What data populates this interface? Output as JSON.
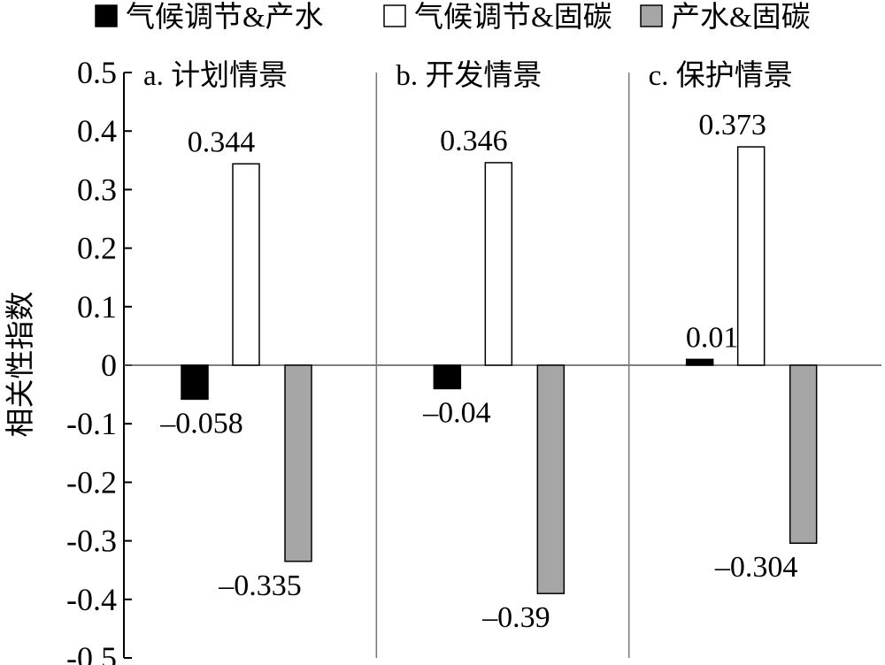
{
  "chart_data": {
    "type": "bar",
    "title": "",
    "xlabel": "",
    "ylabel": "相关性指数",
    "ylim": [
      -0.5,
      0.5
    ],
    "yticks": [
      "0.5",
      "0.4",
      "0.3",
      "0.2",
      "0.1",
      "0",
      "-0.1",
      "-0.2",
      "-0.3",
      "-0.4",
      "-0.5"
    ],
    "ytick_values": [
      0.5,
      0.4,
      0.3,
      0.2,
      0.1,
      0,
      -0.1,
      -0.2,
      -0.3,
      -0.4,
      -0.5
    ],
    "legend_position": "top",
    "categories": [
      "a. 计划情景",
      "b. 开发情景",
      "c. 保护情景"
    ],
    "series": [
      {
        "name": "气候调节&产水",
        "color": "#000000",
        "values": [
          -0.058,
          -0.04,
          0.01
        ],
        "labels": [
          "–0.058",
          "–0.04",
          "0.01"
        ]
      },
      {
        "name": "气候调节&固碳",
        "color": "#ffffff",
        "values": [
          0.344,
          0.346,
          0.373
        ],
        "labels": [
          "0.344",
          "0.346",
          "0.373"
        ]
      },
      {
        "name": "产水&固碳",
        "color": "#a6a6a6",
        "values": [
          -0.335,
          -0.39,
          -0.304
        ],
        "labels": [
          "–0.335",
          "–0.39",
          "–0.304"
        ]
      }
    ],
    "grid": false
  }
}
